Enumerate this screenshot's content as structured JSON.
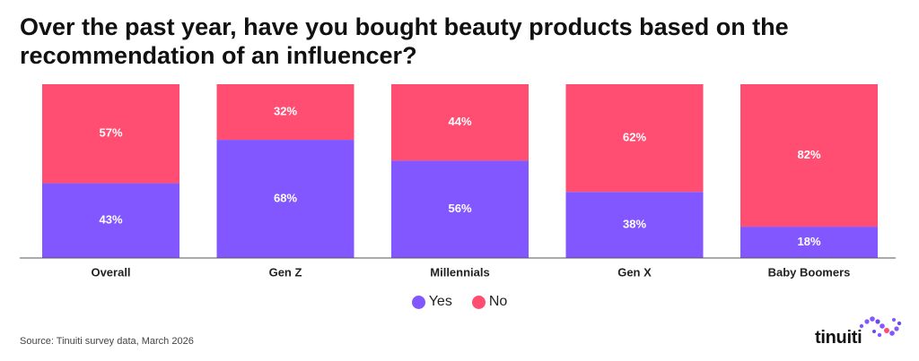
{
  "colors": {
    "yes": "#8257FF",
    "no": "#FF4E72",
    "label": "#ffffff",
    "axis": "#444444"
  },
  "chart_data": {
    "type": "bar",
    "stacked": true,
    "normalized": true,
    "title": "Over the past year, have you bought beauty products based on the recommendation of an influencer?",
    "categories": [
      "Overall",
      "Gen Z",
      "Millennials",
      "Gen X",
      "Baby Boomers"
    ],
    "series": [
      {
        "name": "Yes",
        "values": [
          43,
          68,
          56,
          38,
          18
        ],
        "labels": [
          "43%",
          "68%",
          "56%",
          "38%",
          "18%"
        ]
      },
      {
        "name": "No",
        "values": [
          57,
          32,
          44,
          62,
          82
        ],
        "labels": [
          "57%",
          "32%",
          "44%",
          "62%",
          "82%"
        ]
      }
    ],
    "ylim": [
      0,
      100
    ],
    "grid": false,
    "legend": "bottom-center"
  },
  "legend": {
    "yes_label": "Yes",
    "no_label": "No"
  },
  "source": "Source: Tinuiti survey data, March 2026",
  "logo": {
    "text": "tinuiti",
    "icon": "dot-swirl-icon"
  }
}
